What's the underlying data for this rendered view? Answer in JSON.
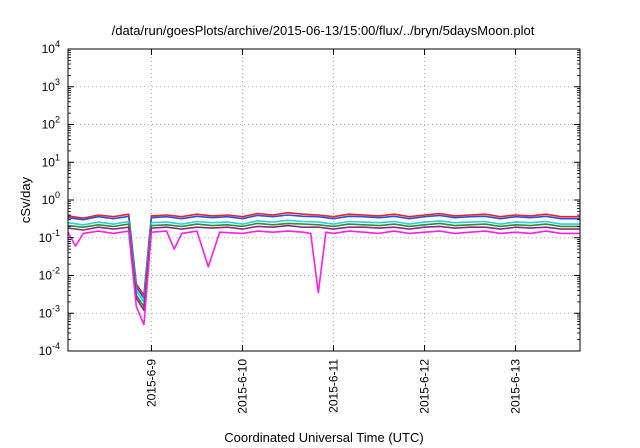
{
  "chart_data": {
    "type": "line",
    "title": "/data/run/goesPlots/archive/2015-06-13/15:00/flux/../bryn/5daysMoon.plot",
    "xlabel": "Coordinated Universal Time (UTC)",
    "ylabel": "cSv/day",
    "yscale": "log",
    "ylim": [
      0.0001,
      10000
    ],
    "xlim": [
      "2015-06-08 02:00",
      "2015-06-13 17:00"
    ],
    "grid": true,
    "legend": "none",
    "y_ticks": [
      {
        "base": "10",
        "exp": "-4"
      },
      {
        "base": "10",
        "exp": "-3"
      },
      {
        "base": "10",
        "exp": "-2"
      },
      {
        "base": "10",
        "exp": "-1"
      },
      {
        "base": "10",
        "exp": "0"
      },
      {
        "base": "10",
        "exp": "1"
      },
      {
        "base": "10",
        "exp": "2"
      },
      {
        "base": "10",
        "exp": "3"
      },
      {
        "base": "10",
        "exp": "4"
      }
    ],
    "x_ticks": [
      "2015-6-9",
      "2015-6-10",
      "2015-6-11",
      "2015-6-12",
      "2015-6-13"
    ],
    "series": [
      {
        "color": "#e8232a",
        "x": [
          "2015-06-08 02:00",
          "2015-06-08 06:00",
          "2015-06-08 10:00",
          "2015-06-08 14:00",
          "2015-06-08 18:00",
          "2015-06-08 20:00",
          "2015-06-08 22:00",
          "2015-06-09 00:00",
          "2015-06-09 04:00",
          "2015-06-09 08:00",
          "2015-06-09 12:00",
          "2015-06-09 16:00",
          "2015-06-09 20:00",
          "2015-06-10 00:00",
          "2015-06-10 04:00",
          "2015-06-10 08:00",
          "2015-06-10 12:00",
          "2015-06-10 16:00",
          "2015-06-10 20:00",
          "2015-06-11 00:00",
          "2015-06-11 04:00",
          "2015-06-11 08:00",
          "2015-06-11 12:00",
          "2015-06-11 16:00",
          "2015-06-11 20:00",
          "2015-06-12 00:00",
          "2015-06-12 04:00",
          "2015-06-12 08:00",
          "2015-06-12 12:00",
          "2015-06-12 16:00",
          "2015-06-12 20:00",
          "2015-06-13 00:00",
          "2015-06-13 04:00",
          "2015-06-13 08:00",
          "2015-06-13 12:00",
          "2015-06-13 17:00"
        ],
        "values": [
          0.38,
          0.33,
          0.4,
          0.36,
          0.42,
          0.006,
          0.003,
          0.38,
          0.4,
          0.36,
          0.42,
          0.38,
          0.4,
          0.36,
          0.44,
          0.4,
          0.46,
          0.42,
          0.4,
          0.36,
          0.42,
          0.4,
          0.38,
          0.42,
          0.36,
          0.4,
          0.44,
          0.38,
          0.4,
          0.42,
          0.36,
          0.4,
          0.38,
          0.42,
          0.36,
          0.36
        ]
      },
      {
        "color": "#2a52e0",
        "x": [
          "2015-06-08 02:00",
          "2015-06-08 06:00",
          "2015-06-08 10:00",
          "2015-06-08 14:00",
          "2015-06-08 18:00",
          "2015-06-08 20:00",
          "2015-06-08 22:00",
          "2015-06-09 00:00",
          "2015-06-09 04:00",
          "2015-06-09 08:00",
          "2015-06-09 12:00",
          "2015-06-09 16:00",
          "2015-06-09 20:00",
          "2015-06-10 00:00",
          "2015-06-10 04:00",
          "2015-06-10 08:00",
          "2015-06-10 12:00",
          "2015-06-10 16:00",
          "2015-06-10 20:00",
          "2015-06-11 00:00",
          "2015-06-11 04:00",
          "2015-06-11 08:00",
          "2015-06-11 12:00",
          "2015-06-11 16:00",
          "2015-06-11 20:00",
          "2015-06-12 00:00",
          "2015-06-12 04:00",
          "2015-06-12 08:00",
          "2015-06-12 12:00",
          "2015-06-12 16:00",
          "2015-06-12 20:00",
          "2015-06-13 00:00",
          "2015-06-13 04:00",
          "2015-06-13 08:00",
          "2015-06-13 12:00",
          "2015-06-13 17:00"
        ],
        "values": [
          0.34,
          0.3,
          0.36,
          0.32,
          0.37,
          0.005,
          0.0025,
          0.34,
          0.36,
          0.32,
          0.37,
          0.34,
          0.36,
          0.32,
          0.39,
          0.36,
          0.4,
          0.37,
          0.36,
          0.32,
          0.37,
          0.36,
          0.34,
          0.37,
          0.32,
          0.36,
          0.39,
          0.34,
          0.36,
          0.37,
          0.32,
          0.36,
          0.34,
          0.37,
          0.32,
          0.32
        ]
      },
      {
        "color": "#2ad1d6",
        "x": [
          "2015-06-08 02:00",
          "2015-06-08 06:00",
          "2015-06-08 10:00",
          "2015-06-08 14:00",
          "2015-06-08 18:00",
          "2015-06-08 20:00",
          "2015-06-08 22:00",
          "2015-06-09 00:00",
          "2015-06-09 04:00",
          "2015-06-09 08:00",
          "2015-06-09 12:00",
          "2015-06-09 16:00",
          "2015-06-09 20:00",
          "2015-06-10 00:00",
          "2015-06-10 04:00",
          "2015-06-10 08:00",
          "2015-06-10 12:00",
          "2015-06-10 16:00",
          "2015-06-10 20:00",
          "2015-06-11 00:00",
          "2015-06-11 04:00",
          "2015-06-11 08:00",
          "2015-06-11 12:00",
          "2015-06-11 16:00",
          "2015-06-11 20:00",
          "2015-06-12 00:00",
          "2015-06-12 04:00",
          "2015-06-12 08:00",
          "2015-06-12 12:00",
          "2015-06-12 16:00",
          "2015-06-12 20:00",
          "2015-06-13 00:00",
          "2015-06-13 04:00",
          "2015-06-13 08:00",
          "2015-06-13 12:00",
          "2015-06-13 17:00"
        ],
        "values": [
          0.25,
          0.22,
          0.26,
          0.23,
          0.27,
          0.004,
          0.002,
          0.25,
          0.26,
          0.23,
          0.27,
          0.25,
          0.26,
          0.23,
          0.28,
          0.26,
          0.29,
          0.27,
          0.26,
          0.23,
          0.27,
          0.26,
          0.25,
          0.27,
          0.23,
          0.26,
          0.28,
          0.25,
          0.26,
          0.27,
          0.23,
          0.26,
          0.25,
          0.27,
          0.23,
          0.23
        ]
      },
      {
        "color": "#2e8b3a",
        "x": [
          "2015-06-08 02:00",
          "2015-06-08 06:00",
          "2015-06-08 10:00",
          "2015-06-08 14:00",
          "2015-06-08 18:00",
          "2015-06-08 20:00",
          "2015-06-08 22:00",
          "2015-06-09 00:00",
          "2015-06-09 04:00",
          "2015-06-09 08:00",
          "2015-06-09 12:00",
          "2015-06-09 16:00",
          "2015-06-09 20:00",
          "2015-06-10 00:00",
          "2015-06-10 04:00",
          "2015-06-10 08:00",
          "2015-06-10 12:00",
          "2015-06-10 16:00",
          "2015-06-10 20:00",
          "2015-06-11 00:00",
          "2015-06-11 04:00",
          "2015-06-11 08:00",
          "2015-06-11 12:00",
          "2015-06-11 16:00",
          "2015-06-11 20:00",
          "2015-06-12 00:00",
          "2015-06-12 04:00",
          "2015-06-12 08:00",
          "2015-06-12 12:00",
          "2015-06-12 16:00",
          "2015-06-12 20:00",
          "2015-06-13 00:00",
          "2015-06-13 04:00",
          "2015-06-13 08:00",
          "2015-06-13 12:00",
          "2015-06-13 17:00"
        ],
        "values": [
          0.21,
          0.19,
          0.22,
          0.2,
          0.23,
          0.003,
          0.0015,
          0.21,
          0.22,
          0.2,
          0.23,
          0.21,
          0.22,
          0.2,
          0.24,
          0.22,
          0.24,
          0.23,
          0.22,
          0.2,
          0.23,
          0.22,
          0.21,
          0.23,
          0.2,
          0.22,
          0.24,
          0.21,
          0.22,
          0.23,
          0.2,
          0.22,
          0.21,
          0.23,
          0.2,
          0.2
        ]
      },
      {
        "color": "#8a2b7e",
        "x": [
          "2015-06-08 02:00",
          "2015-06-08 06:00",
          "2015-06-08 10:00",
          "2015-06-08 14:00",
          "2015-06-08 18:00",
          "2015-06-08 20:00",
          "2015-06-08 22:00",
          "2015-06-09 00:00",
          "2015-06-09 04:00",
          "2015-06-09 08:00",
          "2015-06-09 12:00",
          "2015-06-09 16:00",
          "2015-06-09 20:00",
          "2015-06-10 00:00",
          "2015-06-10 04:00",
          "2015-06-10 08:00",
          "2015-06-10 12:00",
          "2015-06-10 16:00",
          "2015-06-10 20:00",
          "2015-06-11 00:00",
          "2015-06-11 04:00",
          "2015-06-11 08:00",
          "2015-06-11 12:00",
          "2015-06-11 16:00",
          "2015-06-11 20:00",
          "2015-06-12 00:00",
          "2015-06-12 04:00",
          "2015-06-12 08:00",
          "2015-06-12 12:00",
          "2015-06-12 16:00",
          "2015-06-12 20:00",
          "2015-06-13 00:00",
          "2015-06-13 04:00",
          "2015-06-13 08:00",
          "2015-06-13 12:00",
          "2015-06-13 17:00"
        ],
        "values": [
          0.18,
          0.16,
          0.19,
          0.17,
          0.19,
          0.0025,
          0.0012,
          0.18,
          0.19,
          0.17,
          0.19,
          0.18,
          0.19,
          0.17,
          0.2,
          0.19,
          0.21,
          0.19,
          0.19,
          0.17,
          0.19,
          0.19,
          0.18,
          0.19,
          0.17,
          0.19,
          0.2,
          0.18,
          0.19,
          0.19,
          0.17,
          0.19,
          0.18,
          0.19,
          0.17,
          0.17
        ]
      },
      {
        "color": "#ff1ee6",
        "x": [
          "2015-06-08 02:00",
          "2015-06-08 04:00",
          "2015-06-08 06:00",
          "2015-06-08 10:00",
          "2015-06-08 14:00",
          "2015-06-08 18:00",
          "2015-06-08 20:00",
          "2015-06-08 22:00",
          "2015-06-09 00:00",
          "2015-06-09 04:00",
          "2015-06-09 06:00",
          "2015-06-09 08:00",
          "2015-06-09 12:00",
          "2015-06-09 15:00",
          "2015-06-09 18:00",
          "2015-06-10 00:00",
          "2015-06-10 04:00",
          "2015-06-10 08:00",
          "2015-06-10 12:00",
          "2015-06-10 16:00",
          "2015-06-10 18:00",
          "2015-06-10 20:00",
          "2015-06-10 22:00",
          "2015-06-11 00:00",
          "2015-06-11 04:00",
          "2015-06-11 08:00",
          "2015-06-11 12:00",
          "2015-06-11 16:00",
          "2015-06-11 20:00",
          "2015-06-12 00:00",
          "2015-06-12 04:00",
          "2015-06-12 08:00",
          "2015-06-12 12:00",
          "2015-06-12 16:00",
          "2015-06-12 20:00",
          "2015-06-13 00:00",
          "2015-06-13 04:00",
          "2015-06-13 08:00",
          "2015-06-13 12:00",
          "2015-06-13 17:00"
        ],
        "values": [
          0.14,
          0.06,
          0.13,
          0.15,
          0.13,
          0.15,
          0.0015,
          0.0005,
          0.14,
          0.15,
          0.05,
          0.13,
          0.15,
          0.017,
          0.14,
          0.13,
          0.15,
          0.14,
          0.15,
          0.14,
          0.13,
          0.0035,
          0.14,
          0.13,
          0.15,
          0.14,
          0.13,
          0.15,
          0.13,
          0.14,
          0.15,
          0.13,
          0.14,
          0.15,
          0.13,
          0.14,
          0.13,
          0.15,
          0.13,
          0.13
        ]
      }
    ]
  }
}
